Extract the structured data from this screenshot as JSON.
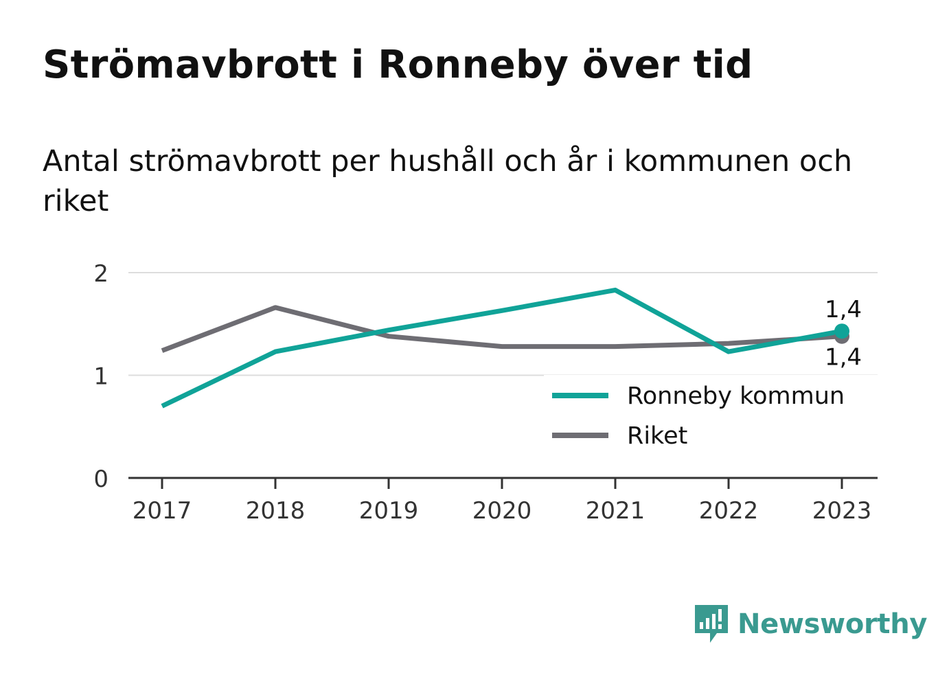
{
  "title": "Strömavbrott i Ronneby över tid",
  "subtitle": "Antal strömavbrott per hushåll och år i kommunen och riket",
  "brand": {
    "name": "Newsworthy",
    "logo_icon": "bar-chart-speech-bubble-icon",
    "color": "#3a9a90"
  },
  "chart_data": {
    "type": "line",
    "x": [
      "2017",
      "2018",
      "2019",
      "2020",
      "2021",
      "2022",
      "2023"
    ],
    "ylim": [
      0,
      2
    ],
    "yticks": [
      "0",
      "1",
      "2"
    ],
    "grid": true,
    "legend_position": "bottom-right",
    "series": [
      {
        "name": "Ronneby kommun",
        "color": "#10a398",
        "values": [
          0.7,
          1.23,
          1.44,
          1.63,
          1.83,
          1.23,
          1.43
        ],
        "end_label": "1,4"
      },
      {
        "name": "Riket",
        "color": "#6e6d73",
        "values": [
          1.24,
          1.66,
          1.38,
          1.28,
          1.28,
          1.31,
          1.38
        ],
        "end_label": "1,4"
      }
    ]
  }
}
